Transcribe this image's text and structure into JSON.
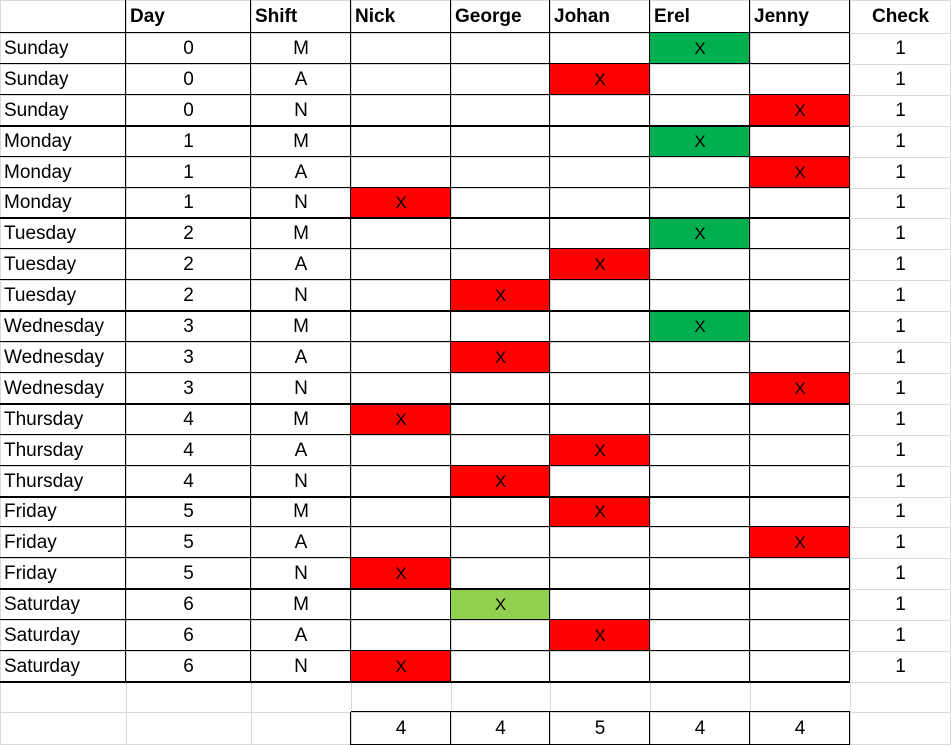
{
  "headers": [
    "",
    "Day",
    "Shift",
    "Nick",
    "George",
    "Johan",
    "Erel",
    "Jenny",
    "Check"
  ],
  "mark_symbol": "X",
  "colors": {
    "red": "#ff0000",
    "green": "#00b050",
    "light_green": "#92d050"
  },
  "rows": [
    {
      "day_name": "Sunday",
      "day": "0",
      "shift": "M",
      "person": 3,
      "color": "green",
      "check": "1"
    },
    {
      "day_name": "Sunday",
      "day": "0",
      "shift": "A",
      "person": 2,
      "color": "red",
      "check": "1"
    },
    {
      "day_name": "Sunday",
      "day": "0",
      "shift": "N",
      "person": 4,
      "color": "red",
      "check": "1"
    },
    {
      "day_name": "Monday",
      "day": "1",
      "shift": "M",
      "person": 3,
      "color": "green",
      "check": "1"
    },
    {
      "day_name": "Monday",
      "day": "1",
      "shift": "A",
      "person": 4,
      "color": "red",
      "check": "1"
    },
    {
      "day_name": "Monday",
      "day": "1",
      "shift": "N",
      "person": 0,
      "color": "red",
      "check": "1"
    },
    {
      "day_name": "Tuesday",
      "day": "2",
      "shift": "M",
      "person": 3,
      "color": "green",
      "check": "1"
    },
    {
      "day_name": "Tuesday",
      "day": "2",
      "shift": "A",
      "person": 2,
      "color": "red",
      "check": "1"
    },
    {
      "day_name": "Tuesday",
      "day": "2",
      "shift": "N",
      "person": 1,
      "color": "red",
      "check": "1"
    },
    {
      "day_name": "Wednesday",
      "day": "3",
      "shift": "M",
      "person": 3,
      "color": "green",
      "check": "1"
    },
    {
      "day_name": "Wednesday",
      "day": "3",
      "shift": "A",
      "person": 1,
      "color": "red",
      "check": "1"
    },
    {
      "day_name": "Wednesday",
      "day": "3",
      "shift": "N",
      "person": 4,
      "color": "red",
      "check": "1"
    },
    {
      "day_name": "Thursday",
      "day": "4",
      "shift": "M",
      "person": 0,
      "color": "red",
      "check": "1"
    },
    {
      "day_name": "Thursday",
      "day": "4",
      "shift": "A",
      "person": 2,
      "color": "red",
      "check": "1"
    },
    {
      "day_name": "Thursday",
      "day": "4",
      "shift": "N",
      "person": 1,
      "color": "red",
      "check": "1"
    },
    {
      "day_name": "Friday",
      "day": "5",
      "shift": "M",
      "person": 2,
      "color": "red",
      "check": "1"
    },
    {
      "day_name": "Friday",
      "day": "5",
      "shift": "A",
      "person": 4,
      "color": "red",
      "check": "1"
    },
    {
      "day_name": "Friday",
      "day": "5",
      "shift": "N",
      "person": 0,
      "color": "red",
      "check": "1"
    },
    {
      "day_name": "Saturday",
      "day": "6",
      "shift": "M",
      "person": 1,
      "color": "light_green",
      "check": "1"
    },
    {
      "day_name": "Saturday",
      "day": "6",
      "shift": "A",
      "person": 2,
      "color": "red",
      "check": "1"
    },
    {
      "day_name": "Saturday",
      "day": "6",
      "shift": "N",
      "person": 0,
      "color": "red",
      "check": "1"
    }
  ],
  "totals": [
    "4",
    "4",
    "5",
    "4",
    "4"
  ]
}
